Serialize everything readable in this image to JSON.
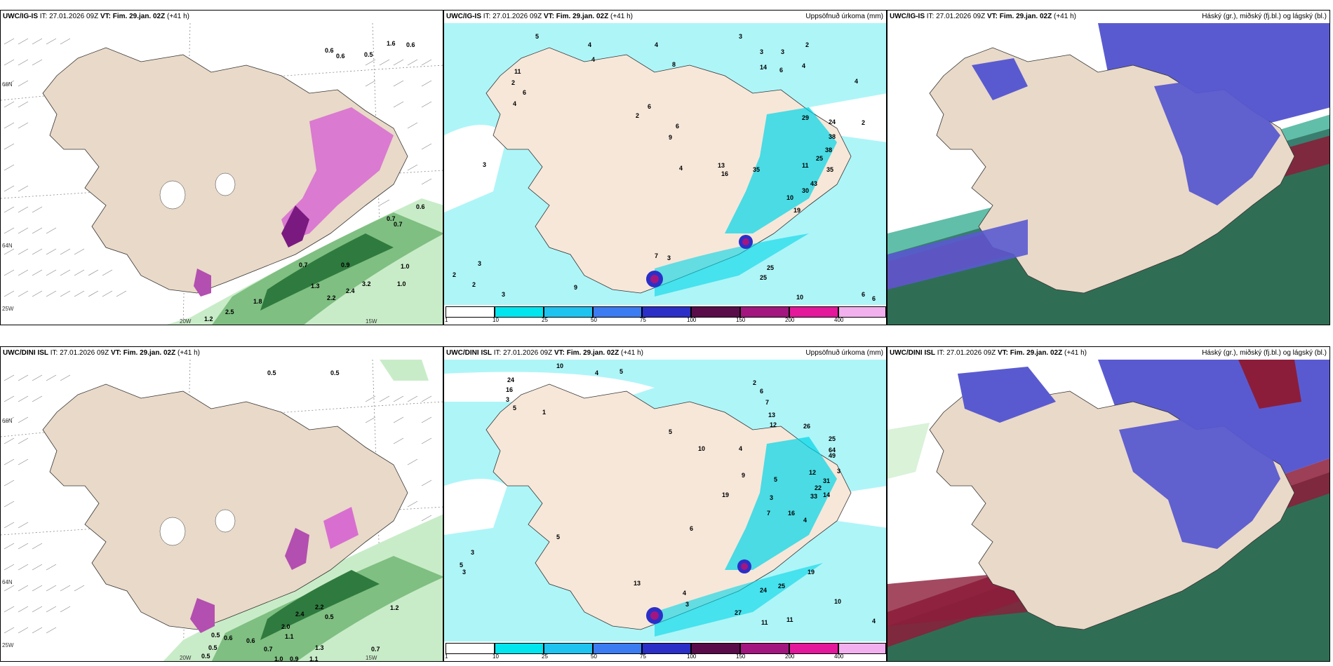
{
  "rows": [
    {
      "model": "UWC/IG-IS",
      "it_label": "IT:",
      "it": "27.01.2026 09Z",
      "vt_label": "VT:",
      "vt": "Fim. 29.jan. 02Z",
      "lead": "(+41 h)",
      "precip_labels": [
        "5",
        "4",
        "4",
        "4",
        "3",
        "3",
        "3",
        "2",
        "14",
        "6",
        "4",
        "11",
        "2",
        "6",
        "4",
        "6",
        "2",
        "8",
        "9",
        "16",
        "4",
        "13",
        "35",
        "29",
        "38",
        "24",
        "11",
        "43",
        "30",
        "10",
        "25",
        "35",
        "19",
        "38",
        "6",
        "4",
        "2",
        "3",
        "9",
        "7",
        "3",
        "25",
        "25",
        "10",
        "6",
        "6",
        "2",
        "3",
        "2",
        "3"
      ],
      "wind_labels": [
        "0.6",
        "0.6",
        "0.5",
        "1.6",
        "0.6",
        "0.7",
        "0.7",
        "0.9",
        "1.0",
        "2.4",
        "2.2",
        "1.3",
        "2.5",
        "1.8",
        "3.2",
        "1.0",
        "0.7",
        "0.6",
        "1.2"
      ]
    },
    {
      "model": "UWC/DINI ISL",
      "it_label": "IT:",
      "it": "27.01.2026 09Z",
      "vt_label": "VT:",
      "vt": "Fim. 29.jan. 02Z",
      "lead": "(+41 h)",
      "precip_labels": [
        "10",
        "4",
        "5",
        "24",
        "16",
        "3",
        "5",
        "1",
        "2",
        "6",
        "7",
        "13",
        "12",
        "26",
        "25",
        "49",
        "64",
        "10",
        "5",
        "4",
        "9",
        "5",
        "3",
        "12",
        "31",
        "22",
        "33",
        "14",
        "3",
        "19",
        "16",
        "4",
        "7",
        "6",
        "13",
        "5",
        "4",
        "3",
        "24",
        "25",
        "27",
        "11",
        "11",
        "19",
        "10",
        "4",
        "3",
        "5",
        "3"
      ],
      "wind_labels": [
        "0.5",
        "0.5",
        "0.5",
        "0.6",
        "0.6",
        "0.5",
        "0.7",
        "1.1",
        "2.4",
        "0.5",
        "2.2",
        "2.0",
        "1.2",
        "1.3",
        "0.7",
        "1.0",
        "0.9",
        "1.1",
        "0.5"
      ]
    }
  ],
  "precip_title": "Uppsöfnuð úrkoma (mm)",
  "ptype_title": "Háský (gr.), miðský (fj.bl.) og lágský (bl.)",
  "colorbar": {
    "labels": [
      "1",
      "10",
      "25",
      "50",
      "75",
      "100",
      "150",
      "200",
      "400"
    ],
    "colors": [
      "#ffffff",
      "#00e5ee",
      "#1ec3f0",
      "#3c7cf3",
      "#2b2fc8",
      "#5a0c4a",
      "#a3167f",
      "#e3189b",
      "#f2b0ee"
    ]
  },
  "axes": {
    "lat_labels": [
      "66N",
      "64N"
    ],
    "lon_labels": [
      "20W",
      "15W",
      "25W"
    ]
  },
  "colors": {
    "land": "#e9d9c8",
    "sea_precip": "#aef5f8",
    "cloud_high": "#5a5ad0",
    "cloud_mid": "#1ea385",
    "cloud_low": "#8c1d3a"
  }
}
